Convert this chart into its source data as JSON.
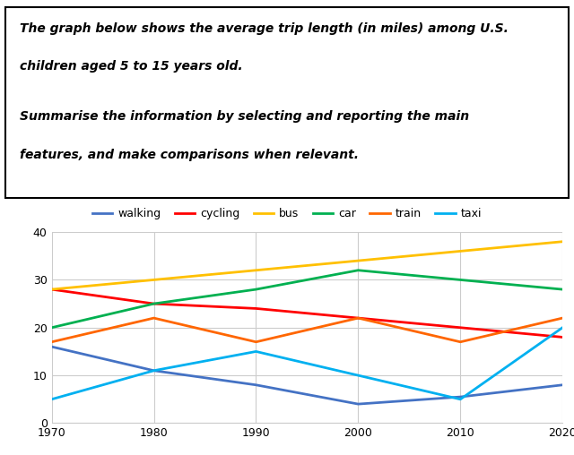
{
  "years": [
    1970,
    1980,
    1990,
    2000,
    2010,
    2020
  ],
  "series": {
    "walking": [
      16,
      11,
      8,
      4,
      5.5,
      8
    ],
    "cycling": [
      28,
      25,
      24,
      22,
      20,
      18
    ],
    "bus": [
      28,
      30,
      32,
      34,
      36,
      38
    ],
    "car": [
      20,
      25,
      28,
      32,
      30,
      28
    ],
    "train": [
      17,
      22,
      17,
      22,
      17,
      22
    ],
    "taxi": [
      5,
      11,
      15,
      10,
      5,
      20
    ]
  },
  "colors": {
    "walking": "#4472C4",
    "cycling": "#FF0000",
    "bus": "#FFC000",
    "car": "#00B050",
    "train": "#FF6600",
    "taxi": "#00B0F0"
  },
  "ylim": [
    0,
    40
  ],
  "yticks": [
    0,
    10,
    20,
    30,
    40
  ],
  "xticks": [
    1970,
    1980,
    1990,
    2000,
    2010,
    2020
  ],
  "legend_labels": [
    "walking",
    "cycling",
    "bus",
    "car",
    "train",
    "taxi"
  ],
  "text_line1": "The graph below shows the average trip length (in miles) among U.S.",
  "text_line2": "children aged 5 to 15 years old.",
  "text_line3": "Summarise the information by selecting and reporting the main",
  "text_line4": "features, and make comparisons when relevant.",
  "line_width": 2.0,
  "fig_width": 6.4,
  "fig_height": 5.08,
  "dpi": 100
}
